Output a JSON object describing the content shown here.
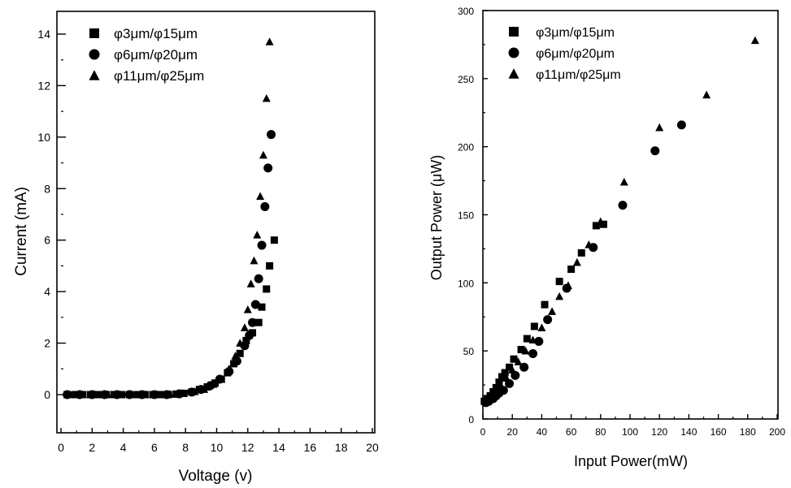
{
  "chart_data": [
    {
      "type": "scatter",
      "xlabel": "Voltage (v)",
      "ylabel": "Current (mA)",
      "xlim": [
        0,
        20
      ],
      "ylim": [
        -1.5,
        15
      ],
      "xticks": [
        "0",
        "2",
        "4",
        "6",
        "8",
        "10",
        "12",
        "14",
        "16",
        "18",
        "20"
      ],
      "yticks": [
        "0",
        "2",
        "4",
        "6",
        "8",
        "10",
        "12",
        "14"
      ],
      "legend_position": "top-left",
      "series": [
        {
          "name": "φ3μm/φ15μm",
          "marker": "square",
          "points": [
            [
              0.4,
              0
            ],
            [
              0.9,
              0
            ],
            [
              1.4,
              0
            ],
            [
              1.9,
              0
            ],
            [
              2.4,
              0
            ],
            [
              2.9,
              0
            ],
            [
              3.4,
              0
            ],
            [
              3.9,
              0
            ],
            [
              4.4,
              0
            ],
            [
              4.9,
              0
            ],
            [
              5.4,
              0
            ],
            [
              5.9,
              0
            ],
            [
              6.4,
              0
            ],
            [
              6.9,
              0
            ],
            [
              7.4,
              0.02
            ],
            [
              7.9,
              0.05
            ],
            [
              8.4,
              0.1
            ],
            [
              8.9,
              0.2
            ],
            [
              9.4,
              0.3
            ],
            [
              9.9,
              0.45
            ],
            [
              10.3,
              0.6
            ],
            [
              10.7,
              0.85
            ],
            [
              11.1,
              1.2
            ],
            [
              11.5,
              1.6
            ],
            [
              11.9,
              2.1
            ],
            [
              12.3,
              2.4
            ],
            [
              12.7,
              2.8
            ],
            [
              12.9,
              3.4
            ],
            [
              13.2,
              4.1
            ],
            [
              13.4,
              5.0
            ],
            [
              13.7,
              6.0
            ]
          ]
        },
        {
          "name": "φ6μm/φ20μm",
          "marker": "circle",
          "points": [
            [
              0.4,
              0
            ],
            [
              1.2,
              0
            ],
            [
              2.0,
              0
            ],
            [
              2.8,
              0
            ],
            [
              3.6,
              0
            ],
            [
              4.4,
              0
            ],
            [
              5.2,
              0
            ],
            [
              6.0,
              0
            ],
            [
              6.8,
              0
            ],
            [
              7.6,
              0.03
            ],
            [
              8.4,
              0.1
            ],
            [
              9.0,
              0.2
            ],
            [
              9.6,
              0.35
            ],
            [
              10.2,
              0.6
            ],
            [
              10.8,
              0.9
            ],
            [
              11.3,
              1.3
            ],
            [
              11.8,
              1.9
            ],
            [
              12.1,
              2.3
            ],
            [
              12.3,
              2.8
            ],
            [
              12.5,
              3.5
            ],
            [
              12.7,
              4.5
            ],
            [
              12.9,
              5.8
            ],
            [
              13.1,
              7.3
            ],
            [
              13.3,
              8.8
            ],
            [
              13.5,
              10.1
            ]
          ]
        },
        {
          "name": "φ11μm/φ25μm",
          "marker": "triangle",
          "points": [
            [
              0.6,
              0
            ],
            [
              1.4,
              0
            ],
            [
              2.2,
              0
            ],
            [
              3.0,
              0
            ],
            [
              3.8,
              0
            ],
            [
              4.6,
              0
            ],
            [
              5.4,
              0
            ],
            [
              6.2,
              0
            ],
            [
              7.0,
              0.02
            ],
            [
              7.8,
              0.05
            ],
            [
              8.6,
              0.12
            ],
            [
              9.2,
              0.2
            ],
            [
              9.8,
              0.4
            ],
            [
              10.3,
              0.6
            ],
            [
              10.8,
              1.0
            ],
            [
              11.2,
              1.5
            ],
            [
              11.5,
              2.0
            ],
            [
              11.8,
              2.6
            ],
            [
              12.0,
              3.3
            ],
            [
              12.2,
              4.3
            ],
            [
              12.4,
              5.2
            ],
            [
              12.6,
              6.2
            ],
            [
              12.8,
              7.7
            ],
            [
              13.0,
              9.3
            ],
            [
              13.2,
              11.5
            ],
            [
              13.4,
              13.7
            ]
          ]
        }
      ]
    },
    {
      "type": "scatter",
      "xlabel": "Input Power(mW)",
      "ylabel": "Output Power (μW)",
      "xlim": [
        0,
        200
      ],
      "ylim": [
        0,
        300
      ],
      "xticks": [
        "0",
        "20",
        "40",
        "60",
        "80",
        "100",
        "120",
        "140",
        "160",
        "180",
        "200"
      ],
      "yticks": [
        "0",
        "50",
        "100",
        "150",
        "200",
        "250",
        "300"
      ],
      "legend_position": "top-left",
      "series": [
        {
          "name": "φ3μm/φ15μm",
          "marker": "square",
          "points": [
            [
              1,
              13
            ],
            [
              3,
              15
            ],
            [
              5,
              17
            ],
            [
              7,
              20
            ],
            [
              9,
              23
            ],
            [
              11,
              27
            ],
            [
              13,
              31
            ],
            [
              15,
              34
            ],
            [
              18,
              38
            ],
            [
              21,
              44
            ],
            [
              26,
              51
            ],
            [
              30,
              59
            ],
            [
              35,
              68
            ],
            [
              42,
              84
            ],
            [
              52,
              101
            ],
            [
              60,
              110
            ],
            [
              67,
              122
            ],
            [
              77,
              142
            ],
            [
              82,
              143
            ]
          ]
        },
        {
          "name": "φ6μm/φ20μm",
          "marker": "circle",
          "points": [
            [
              2,
              12
            ],
            [
              4,
              13
            ],
            [
              7,
              15
            ],
            [
              9,
              17
            ],
            [
              11,
              19
            ],
            [
              14,
              21
            ],
            [
              18,
              26
            ],
            [
              22,
              32
            ],
            [
              28,
              38
            ],
            [
              34,
              48
            ],
            [
              38,
              57
            ],
            [
              44,
              73
            ],
            [
              57,
              96
            ],
            [
              75,
              126
            ],
            [
              95,
              157
            ],
            [
              117,
              197
            ],
            [
              135,
              216
            ]
          ]
        },
        {
          "name": "φ11μm/φ25μm",
          "marker": "triangle",
          "points": [
            [
              3,
              15
            ],
            [
              6,
              18
            ],
            [
              9,
              21
            ],
            [
              12,
              25
            ],
            [
              16,
              30
            ],
            [
              20,
              36
            ],
            [
              24,
              42
            ],
            [
              29,
              50
            ],
            [
              34,
              58
            ],
            [
              40,
              67
            ],
            [
              47,
              79
            ],
            [
              52,
              90
            ],
            [
              58,
              98
            ],
            [
              64,
              115
            ],
            [
              72,
              128
            ],
            [
              80,
              145
            ],
            [
              96,
              174
            ],
            [
              120,
              214
            ],
            [
              152,
              238
            ],
            [
              185,
              278
            ]
          ]
        }
      ]
    }
  ]
}
